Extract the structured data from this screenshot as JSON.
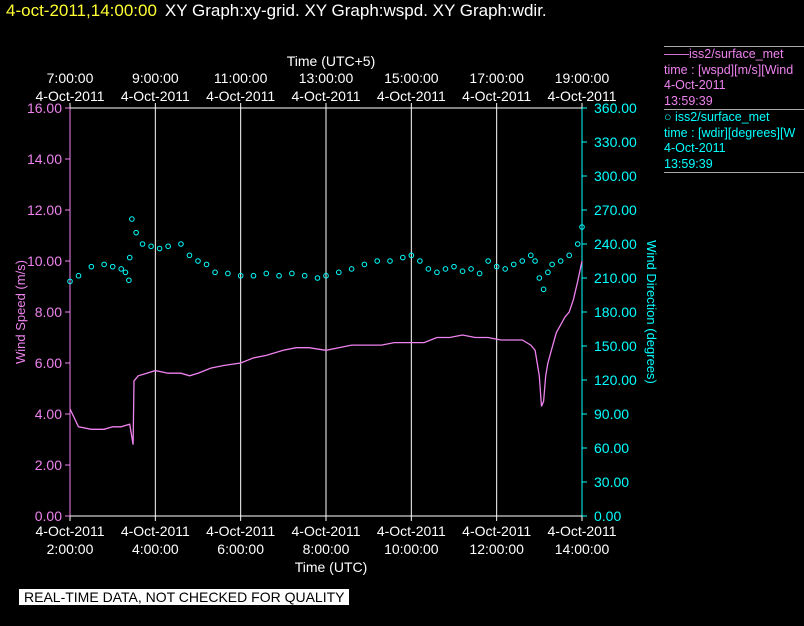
{
  "header": {
    "timestamp": "4-oct-2011,14:00:00",
    "title": "XY Graph:xy-grid.  XY Graph:wspd.  XY Graph:wdir."
  },
  "colors": {
    "wspd": "#ee82ee",
    "wdir": "#00ffff",
    "timestamp": "#ffff33"
  },
  "legend": [
    {
      "name": "iss2/surface_met",
      "line2": "time : [wspd][m/s][Wind",
      "date": "4-Oct-2011",
      "time": "13:59:39",
      "marker": "line"
    },
    {
      "name": "iss2/surface_met",
      "line2": "time : [wdir][degrees][W",
      "date": "4-Oct-2011",
      "time": "13:59:39",
      "marker": "circle"
    }
  ],
  "footer": "REAL-TIME DATA, NOT CHECKED FOR QUALITY",
  "chart_data": {
    "type": "line",
    "title_top": "Time (UTC+5)",
    "xlabel": "Time (UTC)",
    "ylabel_left": "Wind Speed (m/s)",
    "ylabel_right": "Wind Direction (degrees)",
    "x_range_hours_utc": [
      2,
      14
    ],
    "ylim_left": [
      0,
      16
    ],
    "ylim_right": [
      0,
      360
    ],
    "grid": "vertical lines at labeled hours",
    "x_ticks_bottom": [
      {
        "date": "4-Oct-2011",
        "time": "2:00:00",
        "hour": 2
      },
      {
        "date": "4-Oct-2011",
        "time": "4:00:00",
        "hour": 4
      },
      {
        "date": "4-Oct-2011",
        "time": "6:00:00",
        "hour": 6
      },
      {
        "date": "4-Oct-2011",
        "time": "8:00:00",
        "hour": 8
      },
      {
        "date": "4-Oct-2011",
        "time": "10:00:00",
        "hour": 10
      },
      {
        "date": "4-Oct-2011",
        "time": "12:00:00",
        "hour": 12
      },
      {
        "date": "4-Oct-2011",
        "time": "14:00:00",
        "hour": 14
      }
    ],
    "x_ticks_top": [
      {
        "time": "7:00:00",
        "date": "4-Oct-2011",
        "hour": 2
      },
      {
        "time": "9:00:00",
        "date": "4-Oct-2011",
        "hour": 4
      },
      {
        "time": "11:00:00",
        "date": "4-Oct-2011",
        "hour": 6
      },
      {
        "time": "13:00:00",
        "date": "4-Oct-2011",
        "hour": 8
      },
      {
        "time": "15:00:00",
        "date": "4-Oct-2011",
        "hour": 10
      },
      {
        "time": "17:00:00",
        "date": "4-Oct-2011",
        "hour": 12
      },
      {
        "time": "19:00:00",
        "date": "4-Oct-2011",
        "hour": 14
      }
    ],
    "y_ticks_left": [
      "0.00",
      "2.00",
      "4.00",
      "6.00",
      "8.00",
      "10.00",
      "12.00",
      "14.00",
      "16.00"
    ],
    "y_ticks_right": [
      "0.00",
      "30.00",
      "60.00",
      "90.00",
      "120.00",
      "150.00",
      "180.00",
      "210.00",
      "240.00",
      "270.00",
      "300.00",
      "330.00",
      "360.00"
    ],
    "series": [
      {
        "name": "iss2/surface_met wspd",
        "axis": "left",
        "style": "line",
        "x": [
          2.0,
          2.2,
          2.5,
          2.8,
          3.0,
          3.2,
          3.4,
          3.48,
          3.5,
          3.6,
          3.8,
          4.0,
          4.3,
          4.6,
          4.8,
          5.0,
          5.3,
          5.6,
          6.0,
          6.3,
          6.6,
          7.0,
          7.3,
          7.6,
          8.0,
          8.3,
          8.6,
          9.0,
          9.3,
          9.6,
          10.0,
          10.3,
          10.6,
          10.9,
          11.2,
          11.5,
          11.8,
          12.1,
          12.4,
          12.6,
          12.8,
          12.9,
          13.0,
          13.05,
          13.1,
          13.15,
          13.2,
          13.3,
          13.4,
          13.5,
          13.6,
          13.7,
          13.8,
          13.9,
          14.0
        ],
        "y": [
          4.2,
          3.5,
          3.4,
          3.4,
          3.5,
          3.5,
          3.6,
          2.8,
          5.3,
          5.5,
          5.6,
          5.7,
          5.6,
          5.6,
          5.5,
          5.6,
          5.8,
          5.9,
          6.0,
          6.2,
          6.3,
          6.5,
          6.6,
          6.6,
          6.5,
          6.6,
          6.7,
          6.7,
          6.7,
          6.8,
          6.8,
          6.8,
          7.0,
          7.0,
          7.1,
          7.0,
          7.0,
          6.9,
          6.9,
          6.9,
          6.7,
          6.5,
          5.5,
          4.3,
          4.5,
          5.5,
          6.0,
          6.6,
          7.2,
          7.5,
          7.8,
          8.0,
          8.5,
          9.2,
          10.0
        ]
      },
      {
        "name": "iss2/surface_met wdir",
        "axis": "right",
        "style": "circle",
        "x": [
          2.0,
          2.2,
          2.5,
          2.8,
          3.0,
          3.2,
          3.3,
          3.38,
          3.4,
          3.45,
          3.55,
          3.7,
          3.9,
          4.1,
          4.3,
          4.6,
          4.8,
          5.0,
          5.2,
          5.4,
          5.7,
          6.0,
          6.3,
          6.6,
          6.9,
          7.2,
          7.5,
          7.8,
          8.0,
          8.3,
          8.6,
          8.9,
          9.2,
          9.5,
          9.8,
          10.0,
          10.2,
          10.4,
          10.6,
          10.8,
          11.0,
          11.2,
          11.4,
          11.6,
          11.8,
          12.0,
          12.2,
          12.4,
          12.6,
          12.8,
          12.9,
          13.0,
          13.1,
          13.2,
          13.3,
          13.5,
          13.7,
          13.9,
          14.0
        ],
        "y": [
          207,
          212,
          220,
          222,
          220,
          218,
          215,
          208,
          228,
          262,
          250,
          240,
          238,
          236,
          238,
          240,
          230,
          225,
          222,
          215,
          214,
          212,
          212,
          214,
          212,
          214,
          212,
          210,
          212,
          215,
          218,
          222,
          225,
          225,
          228,
          230,
          225,
          218,
          215,
          218,
          220,
          216,
          218,
          214,
          225,
          220,
          218,
          222,
          225,
          230,
          225,
          210,
          200,
          215,
          222,
          225,
          230,
          240,
          255
        ]
      }
    ]
  }
}
